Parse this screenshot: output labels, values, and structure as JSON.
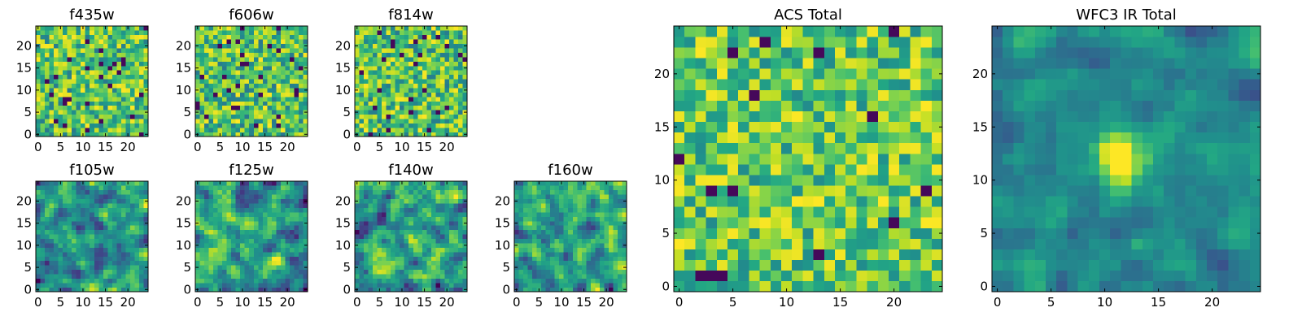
{
  "chart_data": [
    {
      "id": "f435w",
      "type": "heatmap",
      "title": "f435w",
      "grid_size": [
        25,
        25
      ],
      "xlim": [
        0,
        24
      ],
      "ylim": [
        0,
        24
      ],
      "x_ticks": [
        0,
        5,
        10,
        15,
        20
      ],
      "y_ticks": [
        0,
        5,
        10,
        15,
        20
      ],
      "colormap": "viridis",
      "texture": "pixel-noise",
      "seed": 11
    },
    {
      "id": "f606w",
      "type": "heatmap",
      "title": "f606w",
      "grid_size": [
        25,
        25
      ],
      "xlim": [
        0,
        24
      ],
      "ylim": [
        0,
        24
      ],
      "x_ticks": [
        0,
        5,
        10,
        15,
        20
      ],
      "y_ticks": [
        0,
        5,
        10,
        15,
        20
      ],
      "colormap": "viridis",
      "texture": "pixel-noise",
      "seed": 23
    },
    {
      "id": "f814w",
      "type": "heatmap",
      "title": "f814w",
      "grid_size": [
        25,
        25
      ],
      "xlim": [
        0,
        24
      ],
      "ylim": [
        0,
        24
      ],
      "x_ticks": [
        0,
        5,
        10,
        15,
        20
      ],
      "y_ticks": [
        0,
        5,
        10,
        15,
        20
      ],
      "colormap": "viridis",
      "texture": "pixel-noise",
      "seed": 37
    },
    {
      "id": "f105w",
      "type": "heatmap",
      "title": "f105w",
      "grid_size": [
        25,
        25
      ],
      "xlim": [
        0,
        24
      ],
      "ylim": [
        0,
        24
      ],
      "x_ticks": [
        0,
        5,
        10,
        15,
        20
      ],
      "y_ticks": [
        0,
        5,
        10,
        15,
        20
      ],
      "colormap": "viridis",
      "texture": "correlated-noise",
      "seed": 41
    },
    {
      "id": "f125w",
      "type": "heatmap",
      "title": "f125w",
      "grid_size": [
        25,
        25
      ],
      "xlim": [
        0,
        24
      ],
      "ylim": [
        0,
        24
      ],
      "x_ticks": [
        0,
        5,
        10,
        15,
        20
      ],
      "y_ticks": [
        0,
        5,
        10,
        15,
        20
      ],
      "colormap": "viridis",
      "texture": "correlated-noise",
      "seed": 53
    },
    {
      "id": "f140w",
      "type": "heatmap",
      "title": "f140w",
      "grid_size": [
        25,
        25
      ],
      "xlim": [
        0,
        24
      ],
      "ylim": [
        0,
        24
      ],
      "x_ticks": [
        0,
        5,
        10,
        15,
        20
      ],
      "y_ticks": [
        0,
        5,
        10,
        15,
        20
      ],
      "colormap": "viridis",
      "texture": "correlated-noise",
      "seed": 67
    },
    {
      "id": "f160w",
      "type": "heatmap",
      "title": "f160w",
      "grid_size": [
        25,
        25
      ],
      "xlim": [
        0,
        24
      ],
      "ylim": [
        0,
        24
      ],
      "x_ticks": [
        0,
        5,
        10,
        15,
        20
      ],
      "y_ticks": [
        0,
        5,
        10,
        15,
        20
      ],
      "colormap": "viridis",
      "texture": "correlated-noise",
      "seed": 79
    },
    {
      "id": "acs-total",
      "type": "heatmap",
      "title": "ACS Total",
      "grid_size": [
        25,
        25
      ],
      "xlim": [
        0,
        24
      ],
      "ylim": [
        0,
        24
      ],
      "x_ticks": [
        0,
        5,
        10,
        15,
        20
      ],
      "y_ticks": [
        0,
        5,
        10,
        15,
        20
      ],
      "colormap": "viridis",
      "texture": "pixel-noise-bright",
      "seed": 97
    },
    {
      "id": "wfc3-ir-total",
      "type": "heatmap",
      "title": "WFC3 IR Total",
      "grid_size": [
        25,
        25
      ],
      "xlim": [
        0,
        24
      ],
      "ylim": [
        0,
        24
      ],
      "x_ticks": [
        0,
        5,
        10,
        15,
        20
      ],
      "y_ticks": [
        0,
        5,
        10,
        15,
        20
      ],
      "colormap": "viridis",
      "texture": "noise-with-central-source",
      "source_center": [
        11.5,
        12
      ],
      "seed": 113
    }
  ]
}
